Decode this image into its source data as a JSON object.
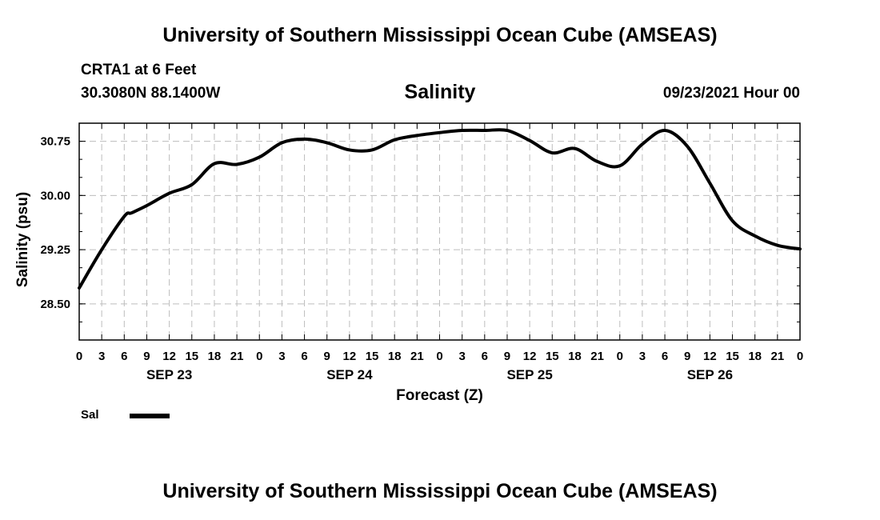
{
  "header": {
    "title": "University of Southern Mississippi Ocean Cube (AMSEAS)",
    "station": "CRTA1 at 6 Feet",
    "coordinates": "30.3080N  88.1400W",
    "chart_title": "Salinity",
    "forecast_time": "09/23/2021 Hour 00"
  },
  "footer": {
    "title": "University of Southern Mississippi Ocean Cube (AMSEAS)"
  },
  "legend": {
    "label": "Sal",
    "color": "#000000"
  },
  "chart_data": {
    "type": "line",
    "title": "Salinity",
    "xlabel": "Forecast (Z)",
    "ylabel": "Salinity (psu)",
    "xlim": [
      0,
      96
    ],
    "ylim": [
      28.0,
      31.0
    ],
    "yticks": [
      28.5,
      29.25,
      30.0,
      30.75
    ],
    "ytick_labels": [
      "28.50",
      "29.25",
      "30.00",
      "30.75"
    ],
    "xticks": [
      0,
      3,
      6,
      9,
      12,
      15,
      18,
      21,
      24,
      27,
      30,
      33,
      36,
      39,
      42,
      45,
      48,
      51,
      54,
      57,
      60,
      63,
      66,
      69,
      72,
      75,
      78,
      81,
      84,
      87,
      90,
      93,
      96
    ],
    "xtick_labels": [
      "0",
      "3",
      "6",
      "9",
      "12",
      "15",
      "18",
      "21",
      "0",
      "3",
      "6",
      "9",
      "12",
      "15",
      "18",
      "21",
      "0",
      "3",
      "6",
      "9",
      "12",
      "15",
      "18",
      "21",
      "0",
      "3",
      "6",
      "9",
      "12",
      "15",
      "18",
      "21",
      "0"
    ],
    "date_labels": [
      {
        "x": 12,
        "label": "SEP 23"
      },
      {
        "x": 36,
        "label": "SEP 24"
      },
      {
        "x": 60,
        "label": "SEP 25"
      },
      {
        "x": 84,
        "label": "SEP 26"
      }
    ],
    "grid": true,
    "series": [
      {
        "name": "Sal",
        "x": [
          0,
          3,
          6,
          7,
          9,
          12,
          15,
          18,
          21,
          24,
          27,
          30,
          33,
          36,
          39,
          42,
          45,
          48,
          51,
          54,
          57,
          60,
          63,
          66,
          69,
          72,
          75,
          78,
          81,
          84,
          87,
          90,
          93,
          96
        ],
        "values": [
          28.72,
          29.25,
          29.71,
          29.76,
          29.86,
          30.03,
          30.15,
          30.44,
          30.43,
          30.53,
          30.73,
          30.78,
          30.73,
          30.63,
          30.63,
          30.77,
          30.83,
          30.87,
          30.9,
          30.9,
          30.9,
          30.76,
          30.59,
          30.65,
          30.47,
          30.41,
          30.71,
          30.9,
          30.68,
          30.17,
          29.65,
          29.44,
          29.31,
          29.26
        ]
      }
    ]
  }
}
